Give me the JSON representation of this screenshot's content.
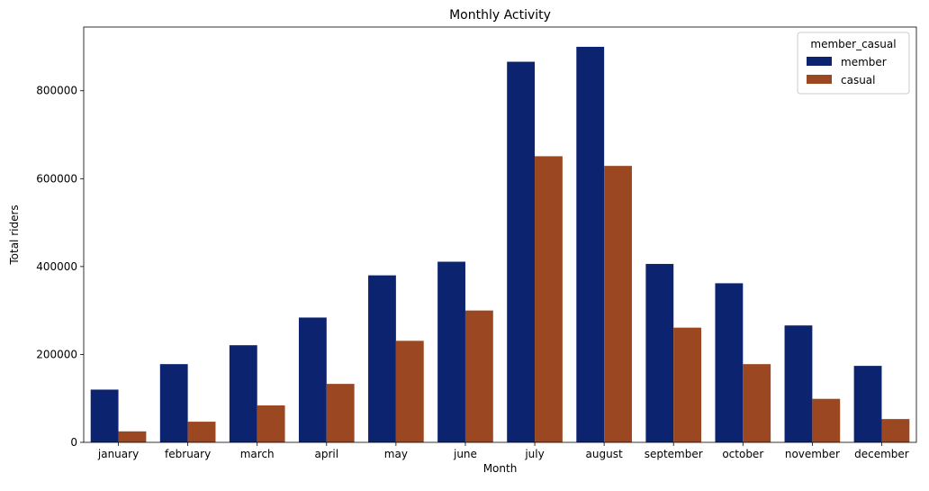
{
  "chart_data": {
    "type": "bar",
    "title": "Monthly Activity",
    "xlabel": "Month",
    "ylabel": "Total riders",
    "categories": [
      "january",
      "february",
      "march",
      "april",
      "may",
      "june",
      "july",
      "august",
      "september",
      "october",
      "november",
      "december"
    ],
    "series": [
      {
        "name": "member",
        "color": "#0c2370",
        "values": [
          120000,
          178000,
          221000,
          284000,
          380000,
          411000,
          866000,
          900000,
          406000,
          362000,
          266000,
          174000
        ]
      },
      {
        "name": "casual",
        "color": "#9b4721",
        "values": [
          25000,
          47000,
          84000,
          133000,
          231000,
          300000,
          651000,
          629000,
          261000,
          178000,
          99000,
          53000
        ]
      }
    ],
    "ylim": [
      0,
      945000
    ],
    "yticks": [
      0,
      200000,
      400000,
      600000,
      800000
    ],
    "ytick_labels": [
      "0",
      "200000",
      "400000",
      "600000",
      "800000"
    ],
    "grid": false,
    "legend": {
      "title": "member_casual",
      "position": "top-right"
    }
  }
}
